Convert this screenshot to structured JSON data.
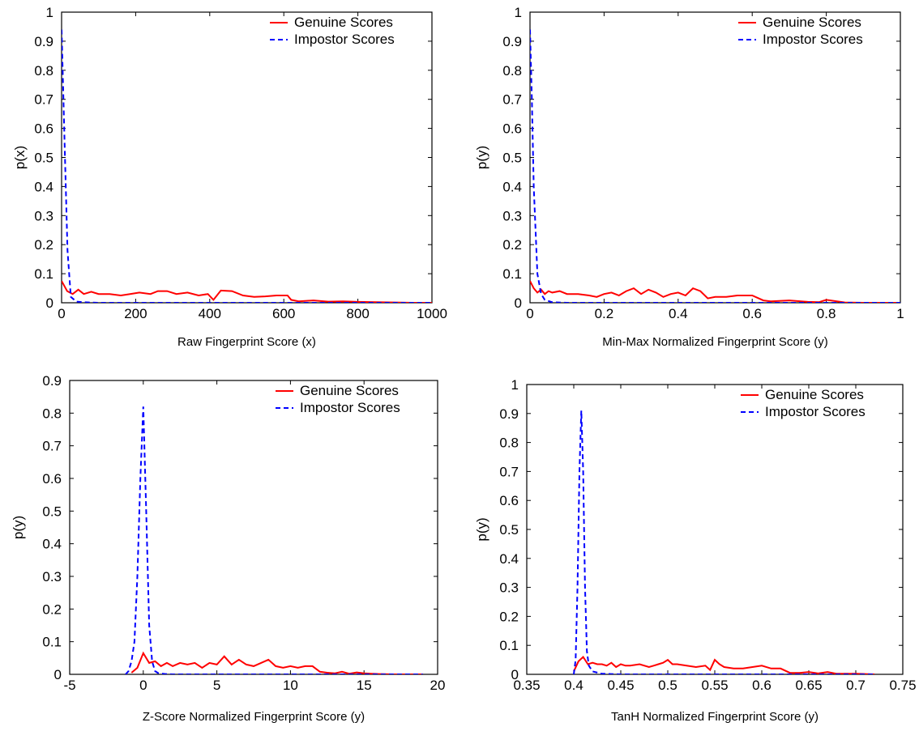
{
  "colors": {
    "genuine": "#ff0000",
    "impostor": "#0000ff",
    "axes": "#000000",
    "background": "#ffffff"
  },
  "chart_data": [
    {
      "type": "line",
      "xlabel": "Raw Fingerprint Score (x)",
      "ylabel": "p(x)",
      "xlim": [
        0,
        1000
      ],
      "ylim": [
        0,
        1
      ],
      "xticks": [
        0,
        200,
        400,
        600,
        800,
        1000
      ],
      "xtick_labels": [
        "0",
        "200",
        "400",
        "600",
        "800",
        "1000"
      ],
      "yticks": [
        0,
        0.1,
        0.2,
        0.3,
        0.4,
        0.5,
        0.6,
        0.7,
        0.8,
        0.9,
        1
      ],
      "ytick_labels": [
        "0",
        "0.1",
        "0.2",
        "0.3",
        "0.4",
        "0.5",
        "0.6",
        "0.7",
        "0.8",
        "0.9",
        "1"
      ],
      "grid": false,
      "legend_position": "top-right",
      "series": [
        {
          "name": "Genuine Scores",
          "style": "solid",
          "x": [
            0,
            15,
            30,
            45,
            60,
            80,
            100,
            130,
            160,
            185,
            210,
            240,
            260,
            285,
            310,
            340,
            370,
            395,
            410,
            430,
            460,
            490,
            520,
            550,
            580,
            610,
            620,
            640,
            680,
            720,
            760,
            800,
            850,
            900,
            950,
            1000
          ],
          "y": [
            0.075,
            0.04,
            0.03,
            0.045,
            0.03,
            0.038,
            0.03,
            0.03,
            0.025,
            0.03,
            0.035,
            0.03,
            0.04,
            0.04,
            0.03,
            0.035,
            0.025,
            0.03,
            0.01,
            0.042,
            0.04,
            0.025,
            0.02,
            0.022,
            0.025,
            0.025,
            0.01,
            0.005,
            0.008,
            0.004,
            0.005,
            0.003,
            0.002,
            0.001,
            0,
            0
          ]
        },
        {
          "name": "Impostor Scores",
          "style": "dashed",
          "x": [
            0,
            8,
            16,
            25,
            40,
            60,
            100,
            200,
            400,
            600,
            800,
            1000
          ],
          "y": [
            0.94,
            0.55,
            0.18,
            0.02,
            0.004,
            0.002,
            0,
            0,
            0,
            0,
            0,
            0
          ]
        }
      ]
    },
    {
      "type": "line",
      "xlabel": "Min-Max Normalized Fingerprint Score (y)",
      "ylabel": "p(y)",
      "xlim": [
        0,
        1
      ],
      "ylim": [
        0,
        1
      ],
      "xticks": [
        0,
        0.2,
        0.4,
        0.6,
        0.8,
        1
      ],
      "xtick_labels": [
        "0",
        "0.2",
        "0.4",
        "0.6",
        "0.8",
        "1"
      ],
      "yticks": [
        0,
        0.1,
        0.2,
        0.3,
        0.4,
        0.5,
        0.6,
        0.7,
        0.8,
        0.9,
        1
      ],
      "ytick_labels": [
        "0",
        "0.1",
        "0.2",
        "0.3",
        "0.4",
        "0.5",
        "0.6",
        "0.7",
        "0.8",
        "0.9",
        "1"
      ],
      "grid": false,
      "legend_position": "top-right",
      "series": [
        {
          "name": "Genuine Scores",
          "style": "solid",
          "x": [
            0,
            0.01,
            0.02,
            0.03,
            0.04,
            0.05,
            0.06,
            0.08,
            0.1,
            0.13,
            0.16,
            0.18,
            0.2,
            0.22,
            0.24,
            0.26,
            0.28,
            0.3,
            0.32,
            0.34,
            0.36,
            0.38,
            0.4,
            0.42,
            0.44,
            0.46,
            0.48,
            0.5,
            0.53,
            0.56,
            0.6,
            0.63,
            0.65,
            0.7,
            0.75,
            0.78,
            0.8,
            0.85,
            0.9,
            0.95,
            1
          ],
          "y": [
            0.075,
            0.05,
            0.035,
            0.045,
            0.03,
            0.04,
            0.035,
            0.04,
            0.03,
            0.03,
            0.025,
            0.02,
            0.03,
            0.035,
            0.025,
            0.04,
            0.05,
            0.03,
            0.045,
            0.035,
            0.02,
            0.03,
            0.035,
            0.025,
            0.05,
            0.04,
            0.015,
            0.02,
            0.02,
            0.025,
            0.025,
            0.008,
            0.005,
            0.008,
            0.003,
            0.002,
            0.01,
            0.001,
            0,
            0,
            0
          ]
        },
        {
          "name": "Impostor Scores",
          "style": "dashed",
          "x": [
            0,
            0.005,
            0.01,
            0.02,
            0.03,
            0.04,
            0.06,
            0.1,
            0.2,
            0.4,
            0.6,
            0.8,
            1
          ],
          "y": [
            0.94,
            0.7,
            0.4,
            0.1,
            0.03,
            0.01,
            0.002,
            0,
            0,
            0,
            0,
            0,
            0
          ]
        }
      ]
    },
    {
      "type": "line",
      "xlabel": "Z-Score Normalized Fingerprint Score (y)",
      "ylabel": "p(y)",
      "xlim": [
        -5,
        20
      ],
      "ylim": [
        0,
        0.9
      ],
      "xticks": [
        -5,
        0,
        5,
        10,
        15,
        20
      ],
      "xtick_labels": [
        "-5",
        "0",
        "5",
        "10",
        "15",
        "20"
      ],
      "yticks": [
        0,
        0.1,
        0.2,
        0.3,
        0.4,
        0.5,
        0.6,
        0.7,
        0.8,
        0.9
      ],
      "ytick_labels": [
        "0",
        "0.1",
        "0.2",
        "0.3",
        "0.4",
        "0.5",
        "0.6",
        "0.7",
        "0.8",
        "0.9"
      ],
      "grid": false,
      "legend_position": "top-right",
      "series": [
        {
          "name": "Genuine Scores",
          "style": "solid",
          "x": [
            -0.8,
            -0.4,
            0,
            0.4,
            0.8,
            1.2,
            1.6,
            2,
            2.5,
            3,
            3.5,
            4,
            4.5,
            5,
            5.5,
            6,
            6.5,
            7,
            7.5,
            8,
            8.5,
            9,
            9.5,
            10,
            10.5,
            11,
            11.5,
            12,
            12.5,
            13,
            13.5,
            14,
            14.5,
            15,
            15.5,
            16,
            17,
            18,
            19
          ],
          "y": [
            0.005,
            0.02,
            0.065,
            0.035,
            0.04,
            0.025,
            0.035,
            0.025,
            0.035,
            0.03,
            0.035,
            0.02,
            0.035,
            0.03,
            0.055,
            0.03,
            0.045,
            0.03,
            0.025,
            0.035,
            0.045,
            0.025,
            0.02,
            0.025,
            0.02,
            0.025,
            0.025,
            0.008,
            0.005,
            0.003,
            0.008,
            0.002,
            0.006,
            0.003,
            0.002,
            0.001,
            0,
            0,
            0
          ]
        },
        {
          "name": "Impostor Scores",
          "style": "dashed",
          "x": [
            -1.2,
            -1,
            -0.8,
            -0.6,
            -0.4,
            -0.2,
            0,
            0.2,
            0.4,
            0.6,
            0.8,
            1,
            1.5,
            2,
            3,
            5,
            10,
            15,
            19
          ],
          "y": [
            0,
            0.01,
            0.04,
            0.1,
            0.3,
            0.6,
            0.82,
            0.5,
            0.15,
            0.04,
            0.01,
            0.004,
            0.001,
            0,
            0,
            0,
            0,
            0,
            0
          ]
        }
      ]
    },
    {
      "type": "line",
      "xlabel": "TanH Normalized Fingerprint Score (y)",
      "ylabel": "p(y)",
      "xlim": [
        0.35,
        0.75
      ],
      "ylim": [
        0,
        1
      ],
      "xticks": [
        0.35,
        0.4,
        0.45,
        0.5,
        0.55,
        0.6,
        0.65,
        0.7,
        0.75
      ],
      "xtick_labels": [
        "0.35",
        "0.4",
        "0.45",
        "0.5",
        "0.55",
        "0.6",
        "0.65",
        "0.7",
        "0.75"
      ],
      "yticks": [
        0,
        0.1,
        0.2,
        0.3,
        0.4,
        0.5,
        0.6,
        0.7,
        0.8,
        0.9,
        1
      ],
      "ytick_labels": [
        "0",
        "0.1",
        "0.2",
        "0.3",
        "0.4",
        "0.5",
        "0.6",
        "0.7",
        "0.8",
        "0.9",
        "1"
      ],
      "grid": false,
      "legend_position": "top-right",
      "series": [
        {
          "name": "Genuine Scores",
          "style": "solid",
          "x": [
            0.4,
            0.405,
            0.41,
            0.415,
            0.42,
            0.425,
            0.43,
            0.435,
            0.44,
            0.445,
            0.45,
            0.455,
            0.46,
            0.47,
            0.48,
            0.485,
            0.49,
            0.495,
            0.5,
            0.505,
            0.51,
            0.52,
            0.53,
            0.54,
            0.545,
            0.55,
            0.555,
            0.56,
            0.57,
            0.58,
            0.59,
            0.6,
            0.61,
            0.62,
            0.63,
            0.64,
            0.65,
            0.66,
            0.67,
            0.68,
            0.7,
            0.72
          ],
          "y": [
            0.01,
            0.045,
            0.06,
            0.035,
            0.04,
            0.035,
            0.035,
            0.03,
            0.04,
            0.025,
            0.035,
            0.03,
            0.03,
            0.035,
            0.025,
            0.03,
            0.035,
            0.04,
            0.05,
            0.035,
            0.035,
            0.03,
            0.025,
            0.03,
            0.015,
            0.05,
            0.035,
            0.025,
            0.02,
            0.02,
            0.025,
            0.03,
            0.02,
            0.02,
            0.005,
            0.005,
            0.008,
            0.003,
            0.008,
            0.002,
            0.002,
            0
          ]
        },
        {
          "name": "Impostor Scores",
          "style": "dashed",
          "x": [
            0.4,
            0.402,
            0.404,
            0.406,
            0.408,
            0.41,
            0.412,
            0.414,
            0.416,
            0.42,
            0.43,
            0.45,
            0.5,
            0.6,
            0.72
          ],
          "y": [
            0,
            0.05,
            0.3,
            0.7,
            0.91,
            0.7,
            0.3,
            0.08,
            0.03,
            0.01,
            0.002,
            0,
            0,
            0,
            0
          ]
        }
      ]
    }
  ]
}
